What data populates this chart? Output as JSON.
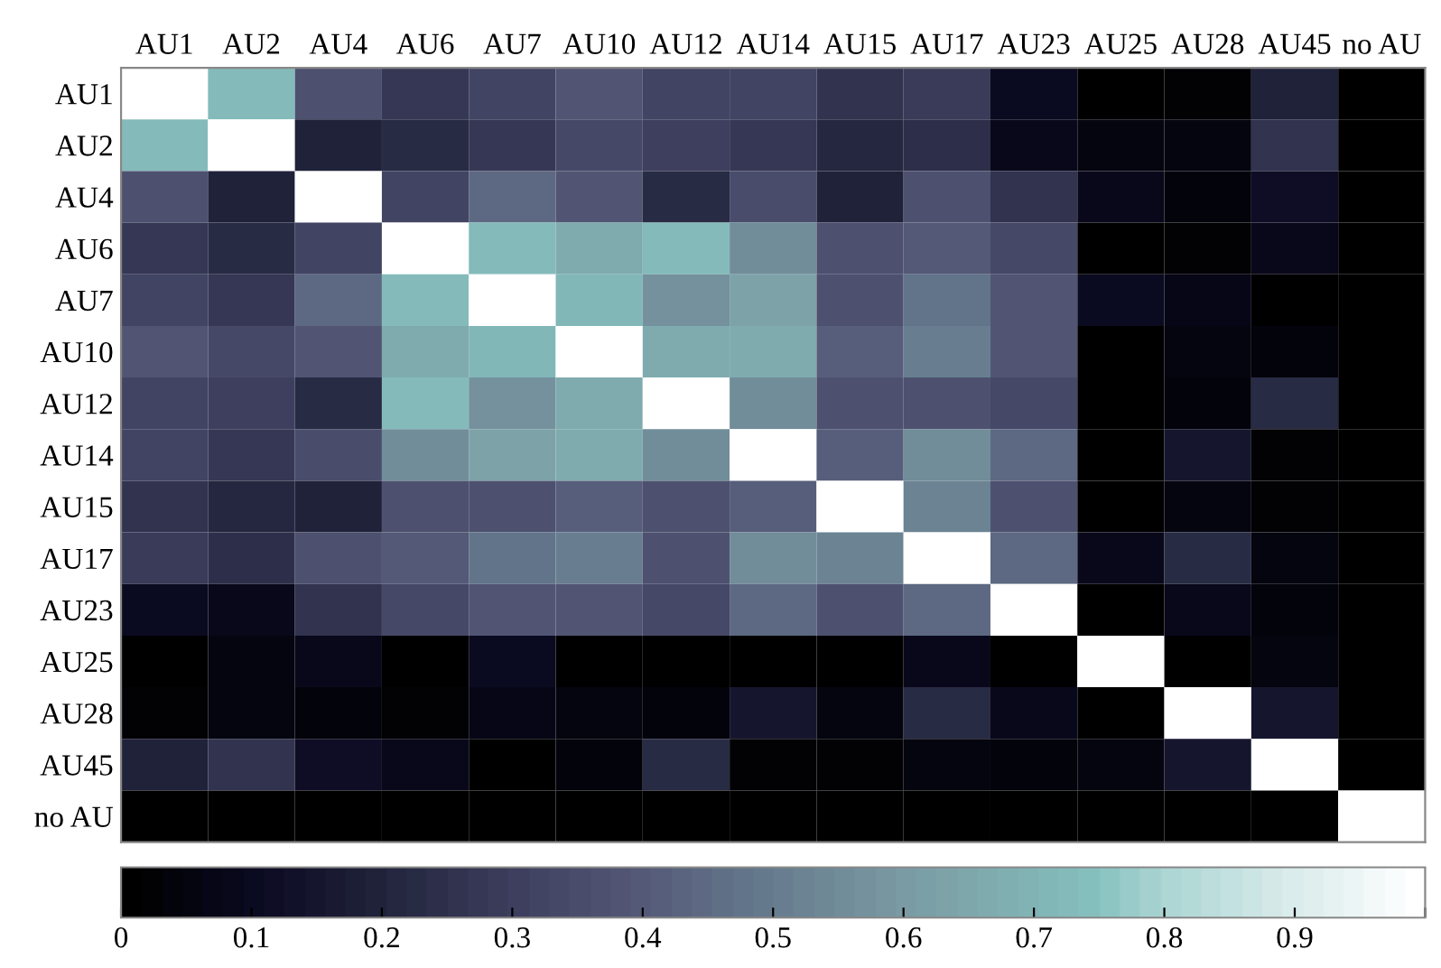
{
  "chart_data": {
    "type": "heatmap",
    "categories": [
      "AU1",
      "AU2",
      "AU4",
      "AU6",
      "AU7",
      "AU10",
      "AU12",
      "AU14",
      "AU15",
      "AU17",
      "AU23",
      "AU25",
      "AU28",
      "AU45",
      "no AU"
    ],
    "y_categories": [
      "AU1",
      "AU2",
      "AU4",
      "AU6",
      "AU7",
      "AU10",
      "AU12",
      "AU14",
      "AU15",
      "AU17",
      "AU23",
      "AU25",
      "AU28",
      "AU45",
      "no AU"
    ],
    "cells": [
      [
        1,
        0.72,
        0.37,
        0.28,
        0.32,
        0.38,
        0.32,
        0.32,
        0.26,
        0.29,
        0.1,
        0,
        0.02,
        0.19,
        0
      ],
      [
        0.72,
        1,
        0.2,
        0.23,
        0.27,
        0.34,
        0.31,
        0.28,
        0.21,
        0.24,
        0.09,
        0.05,
        0.06,
        0.26,
        0
      ],
      [
        0.37,
        0.2,
        1,
        0.32,
        0.44,
        0.38,
        0.22,
        0.35,
        0.2,
        0.37,
        0.26,
        0.09,
        0.04,
        0.11,
        0
      ],
      [
        0.28,
        0.23,
        0.32,
        1,
        0.72,
        0.67,
        0.72,
        0.55,
        0.37,
        0.4,
        0.33,
        0,
        0.02,
        0.09,
        0
      ],
      [
        0.32,
        0.27,
        0.44,
        0.72,
        1,
        0.71,
        0.57,
        0.63,
        0.37,
        0.48,
        0.38,
        0.1,
        0.07,
        0,
        0
      ],
      [
        0.38,
        0.34,
        0.38,
        0.67,
        0.71,
        1,
        0.66,
        0.66,
        0.42,
        0.5,
        0.38,
        0,
        0.06,
        0.04,
        0
      ],
      [
        0.32,
        0.31,
        0.22,
        0.72,
        0.57,
        0.66,
        1,
        0.55,
        0.37,
        0.37,
        0.33,
        0,
        0.04,
        0.22,
        0
      ],
      [
        0.32,
        0.28,
        0.35,
        0.55,
        0.63,
        0.66,
        0.55,
        1,
        0.42,
        0.55,
        0.44,
        0,
        0.15,
        0.03,
        0
      ],
      [
        0.26,
        0.21,
        0.2,
        0.37,
        0.37,
        0.42,
        0.37,
        0.42,
        1,
        0.52,
        0.36,
        0,
        0.06,
        0.03,
        0
      ],
      [
        0.29,
        0.24,
        0.37,
        0.4,
        0.48,
        0.5,
        0.37,
        0.55,
        0.52,
        1,
        0.45,
        0.09,
        0.23,
        0.06,
        0
      ],
      [
        0.1,
        0.09,
        0.26,
        0.33,
        0.38,
        0.38,
        0.33,
        0.44,
        0.36,
        0.45,
        1,
        0,
        0.09,
        0.04,
        0
      ],
      [
        0,
        0.05,
        0.09,
        0,
        0.1,
        0,
        0,
        0,
        0,
        0.09,
        0,
        1,
        0,
        0.05,
        0
      ],
      [
        0.02,
        0.06,
        0.04,
        0.02,
        0.07,
        0.06,
        0.04,
        0.15,
        0.06,
        0.23,
        0.09,
        0,
        1,
        0.15,
        0
      ],
      [
        0.19,
        0.26,
        0.11,
        0.09,
        0,
        0.04,
        0.22,
        0.03,
        0.03,
        0.06,
        0.04,
        0.05,
        0.15,
        1,
        0
      ],
      [
        0,
        0,
        0,
        0,
        0,
        0,
        0,
        0,
        0,
        0,
        0,
        0,
        0,
        0,
        1
      ]
    ],
    "clim": [
      0,
      1
    ],
    "cticks": [
      0,
      0.1,
      0.2,
      0.3,
      0.4,
      0.5,
      0.6,
      0.7,
      0.8,
      0.9,
      {
        "value": 1,
        "label": null
      }
    ]
  }
}
